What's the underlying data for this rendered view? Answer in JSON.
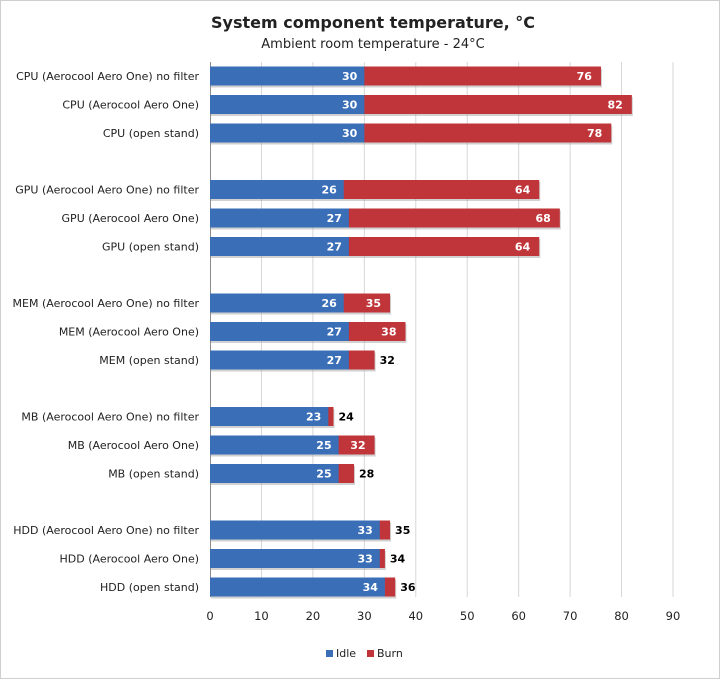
{
  "chart_data": {
    "type": "bar",
    "orientation": "horizontal",
    "stacked": true,
    "title": "System component temperature, °C",
    "subtitle": "Ambient  room  temperature  - 24°C",
    "xlim": [
      0,
      90
    ],
    "x_ticks": [
      0,
      10,
      20,
      30,
      40,
      50,
      60,
      70,
      80,
      90
    ],
    "grid": true,
    "legend_position": "bottom",
    "colors": {
      "Idle": "#3a6fb8",
      "Burn": "#c0353a"
    },
    "groups": [
      {
        "categories": [
          "CPU (Aerocool Aero One) no filter",
          "CPU (Aerocool Aero One)",
          "CPU (open stand)"
        ],
        "idle": [
          30,
          30,
          30
        ],
        "burn": [
          76,
          82,
          78
        ]
      },
      {
        "categories": [
          "GPU (Aerocool Aero One) no filter",
          "GPU (Aerocool Aero One)",
          "GPU (open stand)"
        ],
        "idle": [
          26,
          27,
          27
        ],
        "burn": [
          64,
          68,
          64
        ]
      },
      {
        "categories": [
          "MEM (Aerocool Aero One) no filter",
          "MEM (Aerocool Aero One)",
          "MEM (open stand)"
        ],
        "idle": [
          26,
          27,
          27
        ],
        "burn": [
          35,
          38,
          32
        ]
      },
      {
        "categories": [
          "MB (Aerocool Aero One) no filter",
          "MB (Aerocool Aero One)",
          "MB (open stand)"
        ],
        "idle": [
          23,
          25,
          25
        ],
        "burn": [
          24,
          32,
          28
        ]
      },
      {
        "categories": [
          "HDD (Aerocool Aero One) no filter",
          "HDD (Aerocool Aero One)",
          "HDD (open stand)"
        ],
        "idle": [
          33,
          33,
          34
        ],
        "burn": [
          35,
          34,
          36
        ]
      }
    ],
    "series": [
      {
        "name": "Idle"
      },
      {
        "name": "Burn"
      }
    ]
  }
}
